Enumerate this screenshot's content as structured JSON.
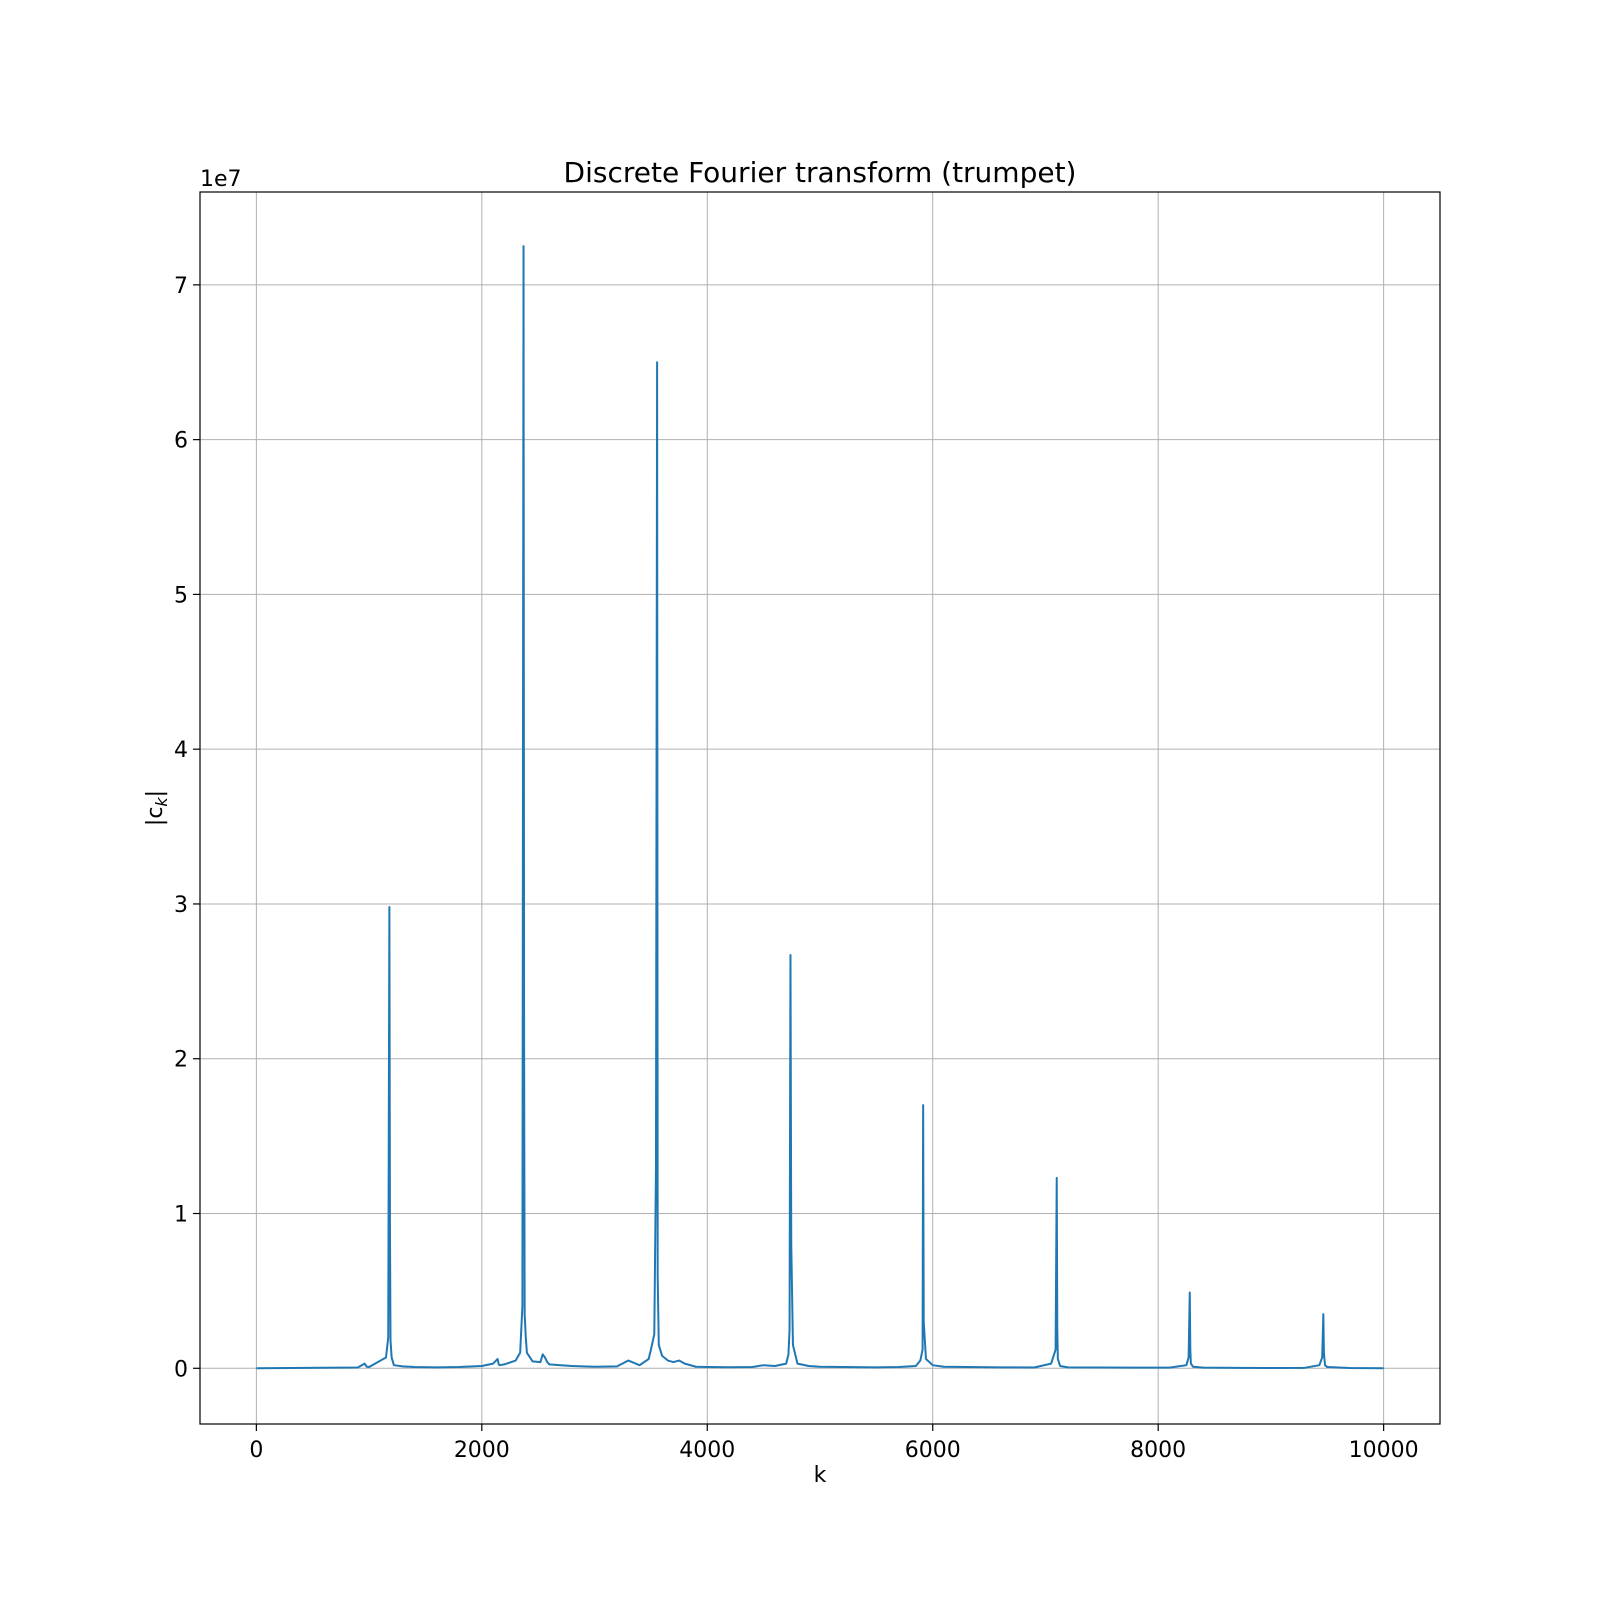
{
  "chart_data": {
    "type": "line",
    "title": "Discrete Fourier transform (trumpet)",
    "xlabel": "k",
    "ylabel_base": "|c",
    "ylabel_sub": "k",
    "ylabel_end": "|",
    "y_offset_text": "1e7",
    "xlim": [
      -500,
      10500
    ],
    "ylim": [
      -3600000,
      76000000
    ],
    "x_ticks": [
      0,
      2000,
      4000,
      6000,
      8000,
      10000
    ],
    "x_tick_labels": [
      "0",
      "2000",
      "4000",
      "6000",
      "8000",
      "10000"
    ],
    "y_ticks": [
      0,
      10000000,
      20000000,
      30000000,
      40000000,
      50000000,
      60000000,
      70000000
    ],
    "y_tick_labels": [
      "0",
      "1",
      "2",
      "3",
      "4",
      "5",
      "6",
      "7"
    ],
    "grid": true,
    "series": [
      {
        "color": "#1f77b4",
        "x": [
          0,
          900,
          960,
          980,
          1000,
          1150,
          1170,
          1180,
          1185,
          1190,
          1200,
          1220,
          1300,
          1400,
          1600,
          1800,
          2000,
          2100,
          2140,
          2150,
          2160,
          2200,
          2300,
          2340,
          2360,
          2370,
          2375,
          2380,
          2390,
          2400,
          2450,
          2520,
          2540,
          2560,
          2580,
          2600,
          2700,
          2800,
          3000,
          3200,
          3300,
          3400,
          3480,
          3500,
          3530,
          3545,
          3555,
          3560,
          3570,
          3600,
          3650,
          3700,
          3750,
          3800,
          3900,
          4000,
          4200,
          4400,
          4500,
          4600,
          4700,
          4720,
          4730,
          4738,
          4745,
          4760,
          4800,
          4900,
          5000,
          5200,
          5500,
          5700,
          5850,
          5890,
          5910,
          5915,
          5920,
          5940,
          6000,
          6100,
          6300,
          6600,
          6900,
          7050,
          7090,
          7100,
          7105,
          7110,
          7130,
          7200,
          7500,
          7800,
          8100,
          8250,
          8270,
          8280,
          8285,
          8290,
          8310,
          8400,
          8700,
          9000,
          9300,
          9430,
          9455,
          9465,
          9470,
          9480,
          9500,
          9700,
          10000
        ],
        "y": [
          0,
          50000,
          300000,
          100000,
          80000,
          700000,
          2000000,
          29800000,
          9000000,
          1800000,
          700000,
          200000,
          120000,
          80000,
          60000,
          80000,
          150000,
          300000,
          600000,
          250000,
          200000,
          250000,
          500000,
          1000000,
          4000000,
          72500000,
          21000000,
          3500000,
          2000000,
          1000000,
          450000,
          400000,
          900000,
          700000,
          400000,
          250000,
          200000,
          150000,
          100000,
          120000,
          500000,
          200000,
          600000,
          1200000,
          2200000,
          13000000,
          65000000,
          6000000,
          1500000,
          800000,
          500000,
          400000,
          500000,
          300000,
          100000,
          80000,
          70000,
          80000,
          200000,
          150000,
          300000,
          900000,
          2500000,
          26700000,
          8000000,
          1500000,
          300000,
          150000,
          100000,
          80000,
          60000,
          80000,
          150000,
          500000,
          1200000,
          17000000,
          3000000,
          600000,
          200000,
          100000,
          80000,
          60000,
          50000,
          300000,
          1200000,
          12300000,
          2500000,
          600000,
          150000,
          60000,
          50000,
          40000,
          40000,
          200000,
          700000,
          4900000,
          1200000,
          300000,
          100000,
          40000,
          30000,
          20000,
          30000,
          200000,
          700000,
          3500000,
          1000000,
          200000,
          80000,
          20000,
          0
        ]
      }
    ]
  }
}
